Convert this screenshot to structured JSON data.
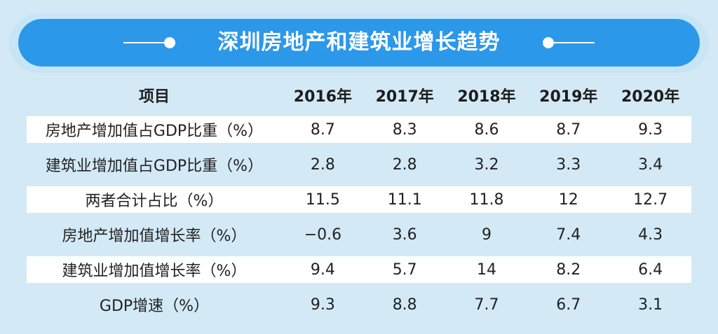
{
  "title": "深圳房地产和建筑业增长趋势",
  "colors": {
    "background": "#d3e9f6",
    "title_bar": "#2c98e9",
    "band": "#ffffff",
    "text": "#222222"
  },
  "chart_data": {
    "type": "table",
    "title": "深圳房地产和建筑业增长趋势",
    "header": [
      "项目",
      "2016年",
      "2017年",
      "2018年",
      "2019年",
      "2020年"
    ],
    "rows": [
      {
        "label": "房地产增加值占GDP比重（%）",
        "values": [
          "8.7",
          "8.3",
          "8.6",
          "8.7",
          "9.3"
        ]
      },
      {
        "label": "建筑业增加值占GDP比重（%）",
        "values": [
          "2.8",
          "2.8",
          "3.2",
          "3.3",
          "3.4"
        ]
      },
      {
        "label": "两者合计占比（%）",
        "values": [
          "11.5",
          "11.1",
          "11.8",
          "12",
          "12.7"
        ]
      },
      {
        "label": "房地产增加值增长率（%）",
        "values": [
          "−0.6",
          "3.6",
          "9",
          "7.4",
          "4.3"
        ]
      },
      {
        "label": "建筑业增加值增长率（%）",
        "values": [
          "9.4",
          "5.7",
          "14",
          "8.2",
          "6.4"
        ]
      },
      {
        "label": "GDP增速（%）",
        "values": [
          "9.3",
          "8.8",
          "7.7",
          "6.7",
          "3.1"
        ]
      }
    ]
  }
}
